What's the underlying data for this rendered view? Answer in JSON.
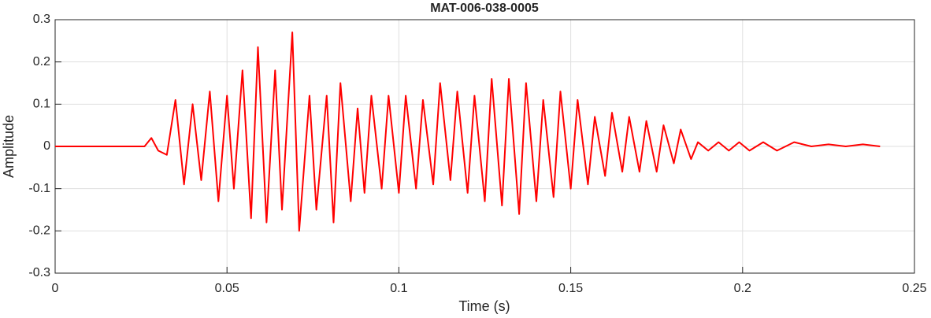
{
  "chart_data": {
    "type": "line",
    "title": "MAT-006-038-0005",
    "x_label": "Time (s)",
    "y_label": "Amplitude",
    "xlim": [
      0,
      0.25
    ],
    "xticks": [
      0,
      0.05,
      0.1,
      0.15,
      0.2,
      0.25
    ],
    "ylim": [
      -0.3,
      0.3
    ],
    "yticks": [
      -0.3,
      -0.2,
      -0.1,
      0,
      0.1,
      0.2,
      0.3
    ],
    "grid": true,
    "series": [
      {
        "color": "#ff0000",
        "x": [
          0,
          0.026,
          0.028,
          0.03,
          0.0325,
          0.035,
          0.0375,
          0.04,
          0.0425,
          0.045,
          0.0475,
          0.05,
          0.052,
          0.0545,
          0.057,
          0.059,
          0.0615,
          0.064,
          0.066,
          0.069,
          0.071,
          0.074,
          0.076,
          0.079,
          0.081,
          0.083,
          0.086,
          0.088,
          0.09,
          0.092,
          0.095,
          0.097,
          0.1,
          0.102,
          0.105,
          0.107,
          0.11,
          0.112,
          0.115,
          0.117,
          0.12,
          0.122,
          0.125,
          0.127,
          0.13,
          0.132,
          0.135,
          0.137,
          0.14,
          0.142,
          0.145,
          0.147,
          0.15,
          0.152,
          0.155,
          0.157,
          0.16,
          0.162,
          0.165,
          0.167,
          0.17,
          0.172,
          0.175,
          0.177,
          0.18,
          0.182,
          0.185,
          0.187,
          0.19,
          0.193,
          0.196,
          0.199,
          0.202,
          0.206,
          0.21,
          0.215,
          0.22,
          0.225,
          0.23,
          0.235,
          0.24
        ],
        "values": [
          0,
          0,
          0.02,
          -0.01,
          -0.02,
          0.11,
          -0.09,
          0.1,
          -0.08,
          0.13,
          -0.13,
          0.12,
          -0.1,
          0.18,
          -0.17,
          0.235,
          -0.18,
          0.18,
          -0.15,
          0.27,
          -0.2,
          0.12,
          -0.15,
          0.12,
          -0.18,
          0.15,
          -0.13,
          0.09,
          -0.11,
          0.12,
          -0.1,
          0.12,
          -0.11,
          0.12,
          -0.1,
          0.11,
          -0.09,
          0.15,
          -0.08,
          0.13,
          -0.11,
          0.12,
          -0.13,
          0.16,
          -0.14,
          0.16,
          -0.16,
          0.15,
          -0.13,
          0.11,
          -0.12,
          0.13,
          -0.1,
          0.11,
          -0.09,
          0.07,
          -0.07,
          0.08,
          -0.06,
          0.07,
          -0.06,
          0.06,
          -0.06,
          0.05,
          -0.04,
          0.04,
          -0.03,
          0.01,
          -0.01,
          0.01,
          -0.01,
          0.01,
          -0.01,
          0.01,
          -0.01,
          0.01,
          0,
          0.005,
          0,
          0.005,
          0
        ]
      }
    ]
  }
}
